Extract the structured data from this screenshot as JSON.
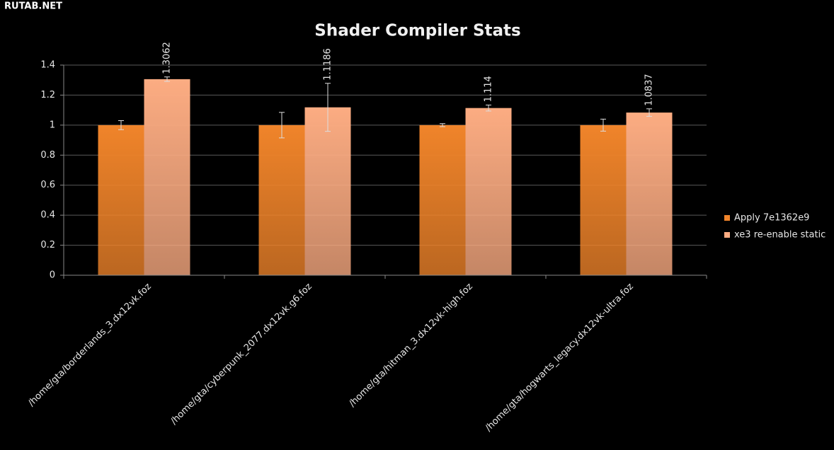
{
  "watermark": "RUTAB.NET",
  "chart_data": {
    "type": "bar",
    "title": "Shader Compiler Stats",
    "categories": [
      "/home/gta/borderlands_3.dx12vk.foz",
      "/home/gta/cyberpunk_2077.dx12vk.g6.foz",
      "/home/gta/hitman_3.dx12vk-high.foz",
      "/home/gta/hogwarts_legacy.dx12vk-ultra.foz"
    ],
    "series": [
      {
        "name": "Apply 7e1362e9",
        "color": "#f0842a",
        "values": [
          1,
          1,
          1,
          1
        ],
        "errors": [
          0.03,
          0.085,
          0.01,
          0.04
        ]
      },
      {
        "name": "xe3 re-enable static",
        "color": "#fcac82",
        "values": [
          1.3062,
          1.1186,
          1.114,
          1.0837
        ],
        "errors": [
          0.015,
          0.16,
          0.02,
          0.025
        ],
        "value_labels": [
          "1.3062",
          "1.1186",
          "1.114",
          "1.0837"
        ]
      }
    ],
    "ylim": [
      0,
      1.4
    ],
    "yticks": [
      0,
      0.2,
      0.4,
      0.6,
      0.8,
      1,
      1.2,
      1.4
    ],
    "grid": true,
    "legend": "right"
  }
}
